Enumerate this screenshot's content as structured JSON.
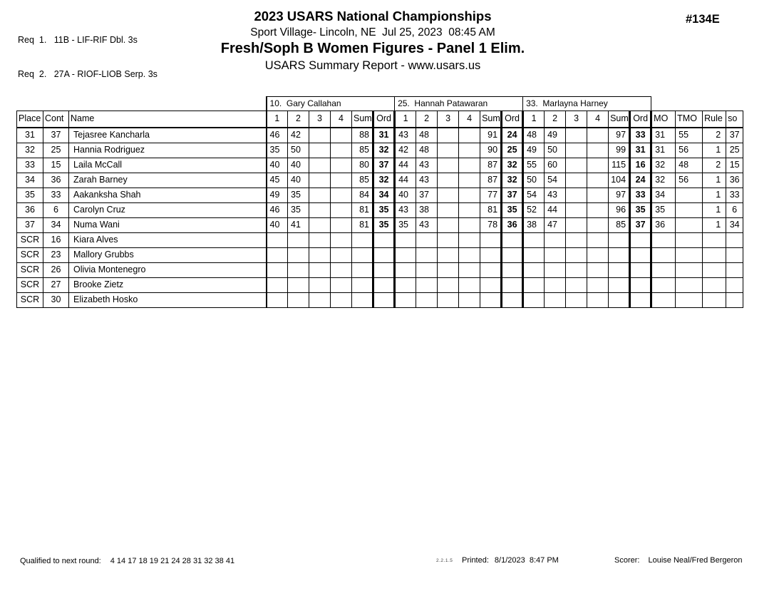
{
  "header": {
    "req1": "Req  1.   11B - LIF-RIF Dbl. 3s",
    "req2": "Req  2.   27A - RIOF-LIOB Serp. 3s",
    "event_number": "#134E",
    "title": "2023 USARS National Championships",
    "venue_line": "Sport Village- Lincoln, NE  Jul 25, 2023  08:45 AM",
    "event_title": "Fresh/Soph B Women Figures - Panel 1 Elim.",
    "report_line": "USARS Summary Report - www.usars.us"
  },
  "table": {
    "judges": [
      "10.  Gary Callahan",
      "25.  Hannah Patawaran",
      "33.  Marlayna Harney"
    ],
    "columns": {
      "place": "Place",
      "cont": "Cont",
      "name": "Name",
      "score_cols": [
        "1",
        "2",
        "3",
        "4",
        "Sum",
        "Ord"
      ],
      "mo": "MO",
      "tmo": "TMO",
      "rule": "Rule",
      "so": "so"
    },
    "rows": [
      {
        "place": "31",
        "cont": "37",
        "name": "Tejasree Kancharla",
        "j1": [
          "46",
          "42",
          "",
          "",
          "88",
          "31"
        ],
        "j2": [
          "43",
          "48",
          "",
          "",
          "91",
          "24"
        ],
        "j3": [
          "48",
          "49",
          "",
          "",
          "97",
          "33"
        ],
        "mo": "31",
        "tmo": "55",
        "rule": "2",
        "so": "37"
      },
      {
        "place": "32",
        "cont": "25",
        "name": "Hannia Rodriguez",
        "j1": [
          "35",
          "50",
          "",
          "",
          "85",
          "32"
        ],
        "j2": [
          "42",
          "48",
          "",
          "",
          "90",
          "25"
        ],
        "j3": [
          "49",
          "50",
          "",
          "",
          "99",
          "31"
        ],
        "mo": "31",
        "tmo": "56",
        "rule": "1",
        "so": "25"
      },
      {
        "place": "33",
        "cont": "15",
        "name": "Laila McCall",
        "j1": [
          "40",
          "40",
          "",
          "",
          "80",
          "37"
        ],
        "j2": [
          "44",
          "43",
          "",
          "",
          "87",
          "32"
        ],
        "j3": [
          "55",
          "60",
          "",
          "",
          "115",
          "16"
        ],
        "mo": "32",
        "tmo": "48",
        "rule": "2",
        "so": "15"
      },
      {
        "place": "34",
        "cont": "36",
        "name": "Zarah Barney",
        "j1": [
          "45",
          "40",
          "",
          "",
          "85",
          "32"
        ],
        "j2": [
          "44",
          "43",
          "",
          "",
          "87",
          "32"
        ],
        "j3": [
          "50",
          "54",
          "",
          "",
          "104",
          "24"
        ],
        "mo": "32",
        "tmo": "56",
        "rule": "1",
        "so": "36"
      },
      {
        "place": "35",
        "cont": "33",
        "name": "Aakanksha Shah",
        "j1": [
          "49",
          "35",
          "",
          "",
          "84",
          "34"
        ],
        "j2": [
          "40",
          "37",
          "",
          "",
          "77",
          "37"
        ],
        "j3": [
          "54",
          "43",
          "",
          "",
          "97",
          "33"
        ],
        "mo": "34",
        "tmo": "",
        "rule": "1",
        "so": "33"
      },
      {
        "place": "36",
        "cont": "6",
        "name": "Carolyn Cruz",
        "j1": [
          "46",
          "35",
          "",
          "",
          "81",
          "35"
        ],
        "j2": [
          "43",
          "38",
          "",
          "",
          "81",
          "35"
        ],
        "j3": [
          "52",
          "44",
          "",
          "",
          "96",
          "35"
        ],
        "mo": "35",
        "tmo": "",
        "rule": "1",
        "so": "6"
      },
      {
        "place": "37",
        "cont": "34",
        "name": "Numa Wani",
        "j1": [
          "40",
          "41",
          "",
          "",
          "81",
          "35"
        ],
        "j2": [
          "35",
          "43",
          "",
          "",
          "78",
          "36"
        ],
        "j3": [
          "38",
          "47",
          "",
          "",
          "85",
          "37"
        ],
        "mo": "36",
        "tmo": "",
        "rule": "1",
        "so": "34"
      },
      {
        "place": "SCR",
        "cont": "16",
        "name": "Kiara Alves",
        "j1": [
          "",
          "",
          "",
          "",
          "",
          ""
        ],
        "j2": [
          "",
          "",
          "",
          "",
          "",
          ""
        ],
        "j3": [
          "",
          "",
          "",
          "",
          "",
          ""
        ],
        "mo": "",
        "tmo": "",
        "rule": "",
        "so": ""
      },
      {
        "place": "SCR",
        "cont": "23",
        "name": "Mallory Grubbs",
        "j1": [
          "",
          "",
          "",
          "",
          "",
          ""
        ],
        "j2": [
          "",
          "",
          "",
          "",
          "",
          ""
        ],
        "j3": [
          "",
          "",
          "",
          "",
          "",
          ""
        ],
        "mo": "",
        "tmo": "",
        "rule": "",
        "so": ""
      },
      {
        "place": "SCR",
        "cont": "26",
        "name": "Olivia Montenegro",
        "j1": [
          "",
          "",
          "",
          "",
          "",
          ""
        ],
        "j2": [
          "",
          "",
          "",
          "",
          "",
          ""
        ],
        "j3": [
          "",
          "",
          "",
          "",
          "",
          ""
        ],
        "mo": "",
        "tmo": "",
        "rule": "",
        "so": ""
      },
      {
        "place": "SCR",
        "cont": "27",
        "name": "Brooke Zietz",
        "j1": [
          "",
          "",
          "",
          "",
          "",
          ""
        ],
        "j2": [
          "",
          "",
          "",
          "",
          "",
          ""
        ],
        "j3": [
          "",
          "",
          "",
          "",
          "",
          ""
        ],
        "mo": "",
        "tmo": "",
        "rule": "",
        "so": ""
      },
      {
        "place": "SCR",
        "cont": "30",
        "name": "Elizabeth Hosko",
        "j1": [
          "",
          "",
          "",
          "",
          "",
          ""
        ],
        "j2": [
          "",
          "",
          "",
          "",
          "",
          ""
        ],
        "j3": [
          "",
          "",
          "",
          "",
          "",
          ""
        ],
        "mo": "",
        "tmo": "",
        "rule": "",
        "so": ""
      }
    ]
  },
  "footer": {
    "qualified_label": "Qualified to next round:",
    "qualified_numbers": "4 14 17 18 19 21 24 28 31 32 38 41",
    "version": "2.2.1.5",
    "printed_label": "Printed:",
    "printed_value": "8/1/2023  8:47 PM",
    "scorer_label": "Scorer:",
    "scorer_value": "Louise Neal/Fred Bergeron"
  }
}
